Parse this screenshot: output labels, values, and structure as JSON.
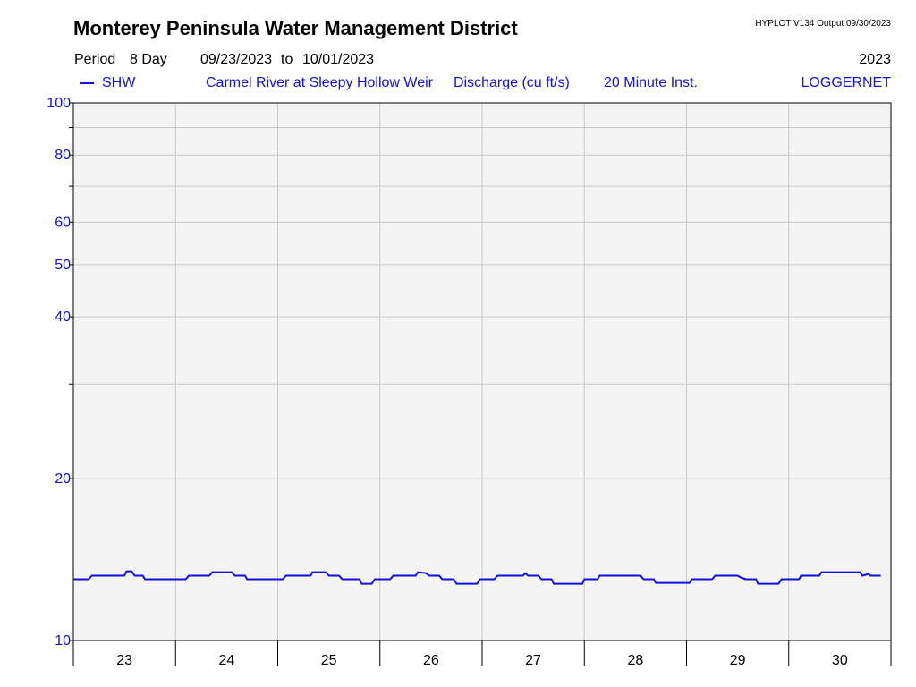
{
  "header": {
    "title": "Monterey Peninsula Water Management District",
    "program": "HYPLOT V134  Output 09/30/2023",
    "period_label": "Period",
    "period_length": "8 Day",
    "start_date": "09/23/2023",
    "to_label": "to",
    "end_date": "10/01/2023",
    "year": "2023"
  },
  "legend": {
    "site_code": "SHW",
    "site_name": "Carmel River at Sleepy Hollow Weir",
    "variable": "Discharge (cu ft/s)",
    "interval": "20 Minute Inst.",
    "source": "LOGGERNET"
  },
  "colors": {
    "series": "#1010e0",
    "plot_background": "#f4f4f4",
    "grid": "#c8c8c8"
  },
  "chart_data": {
    "type": "line",
    "title": "",
    "xlabel": "",
    "ylabel": "",
    "yscale": "log",
    "ylim": [
      10,
      100
    ],
    "xlim": [
      23,
      31
    ],
    "grid": true,
    "y_ticks": [
      10,
      20,
      30,
      40,
      50,
      60,
      70,
      80,
      90,
      100
    ],
    "y_tick_labels": [
      "10",
      "20",
      "",
      "40",
      "50",
      "60",
      "",
      "80",
      "",
      "100"
    ],
    "x_tick_labels": [
      "23",
      "24",
      "25",
      "26",
      "27",
      "28",
      "29",
      "30"
    ],
    "series": [
      {
        "name": "SHW",
        "points": [
          [
            23.0,
            13.0
          ],
          [
            23.15,
            13.0
          ],
          [
            23.18,
            13.2
          ],
          [
            23.5,
            13.2
          ],
          [
            23.52,
            13.45
          ],
          [
            23.57,
            13.45
          ],
          [
            23.6,
            13.2
          ],
          [
            23.68,
            13.2
          ],
          [
            23.7,
            13.0
          ],
          [
            24.1,
            13.0
          ],
          [
            24.13,
            13.2
          ],
          [
            24.33,
            13.2
          ],
          [
            24.36,
            13.4
          ],
          [
            24.55,
            13.4
          ],
          [
            24.58,
            13.2
          ],
          [
            24.68,
            13.2
          ],
          [
            24.7,
            13.0
          ],
          [
            25.05,
            13.0
          ],
          [
            25.08,
            13.2
          ],
          [
            25.32,
            13.2
          ],
          [
            25.34,
            13.4
          ],
          [
            25.47,
            13.4
          ],
          [
            25.5,
            13.2
          ],
          [
            25.6,
            13.2
          ],
          [
            25.63,
            13.0
          ],
          [
            25.8,
            13.0
          ],
          [
            25.82,
            12.75
          ],
          [
            25.92,
            12.75
          ],
          [
            25.95,
            13.0
          ],
          [
            26.1,
            13.0
          ],
          [
            26.13,
            13.2
          ],
          [
            26.35,
            13.2
          ],
          [
            26.37,
            13.4
          ],
          [
            26.45,
            13.35
          ],
          [
            26.48,
            13.2
          ],
          [
            26.58,
            13.2
          ],
          [
            26.61,
            13.0
          ],
          [
            26.72,
            13.0
          ],
          [
            26.75,
            12.75
          ],
          [
            26.95,
            12.75
          ],
          [
            26.98,
            13.0
          ],
          [
            27.12,
            13.0
          ],
          [
            27.15,
            13.2
          ],
          [
            27.4,
            13.2
          ],
          [
            27.42,
            13.35
          ],
          [
            27.45,
            13.2
          ],
          [
            27.55,
            13.2
          ],
          [
            27.58,
            13.0
          ],
          [
            27.68,
            13.0
          ],
          [
            27.7,
            12.75
          ],
          [
            27.98,
            12.75
          ],
          [
            28.0,
            13.0
          ],
          [
            28.13,
            13.0
          ],
          [
            28.15,
            13.2
          ],
          [
            28.55,
            13.2
          ],
          [
            28.58,
            13.0
          ],
          [
            28.68,
            13.0
          ],
          [
            28.7,
            12.8
          ],
          [
            29.03,
            12.8
          ],
          [
            29.05,
            13.0
          ],
          [
            29.25,
            13.0
          ],
          [
            29.28,
            13.2
          ],
          [
            29.5,
            13.2
          ],
          [
            29.53,
            13.1
          ],
          [
            29.58,
            13.0
          ],
          [
            29.68,
            13.0
          ],
          [
            29.7,
            12.75
          ],
          [
            29.9,
            12.75
          ],
          [
            29.93,
            13.0
          ],
          [
            30.1,
            13.0
          ],
          [
            30.12,
            13.2
          ],
          [
            30.3,
            13.2
          ],
          [
            30.32,
            13.4
          ],
          [
            30.7,
            13.4
          ],
          [
            30.72,
            13.2
          ],
          [
            30.78,
            13.3
          ],
          [
            30.8,
            13.2
          ],
          [
            30.9,
            13.2
          ]
        ]
      }
    ]
  }
}
